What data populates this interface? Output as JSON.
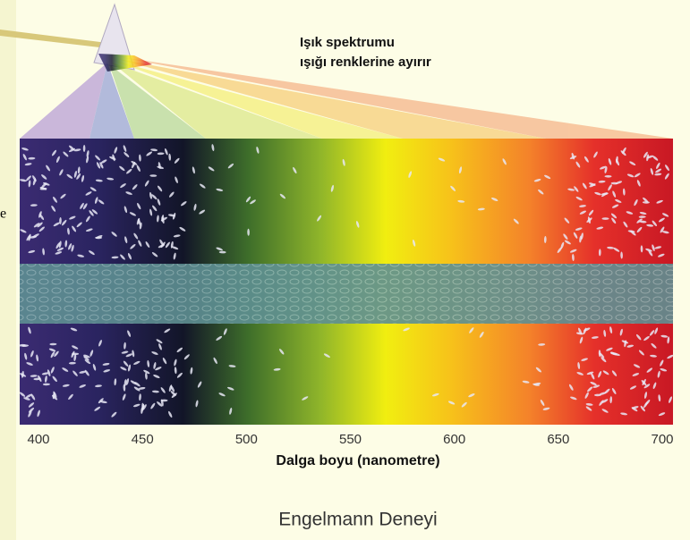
{
  "caption": {
    "line1": "Işık spektrumu",
    "line2": "ışığı renklerine ayırır"
  },
  "edge_fragment": "e",
  "axis": {
    "ticks": [
      400,
      450,
      500,
      550,
      600,
      650,
      700
    ],
    "label": "Dalga boyu (nanometre)"
  },
  "title": "Engelmann Deneyi"
}
